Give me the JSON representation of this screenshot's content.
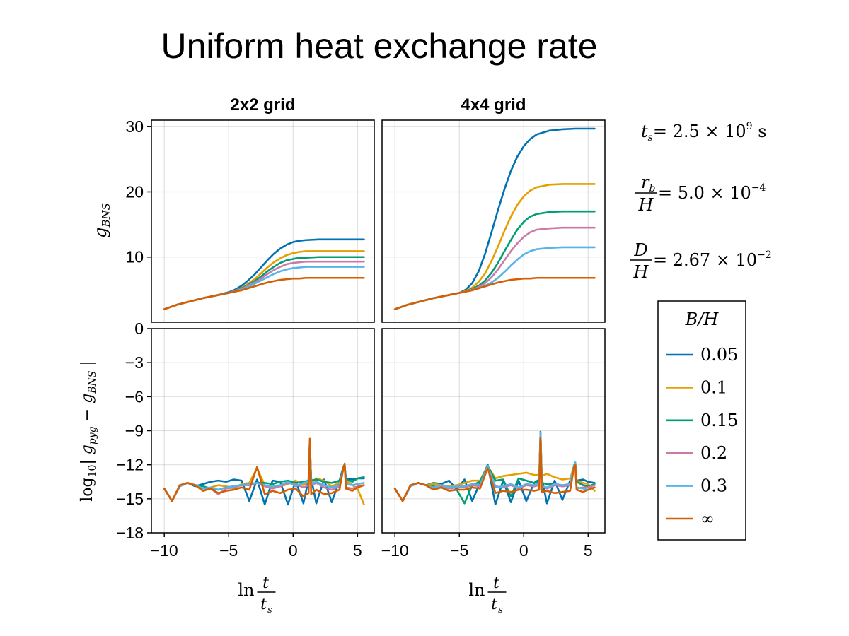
{
  "figure": {
    "title": "Uniform heat exchange rate",
    "annotations": {
      "ts": {
        "lhs": "t",
        "sub": "s",
        "rhs": "= 2.5 × 10",
        "exp": "9",
        "unit": " s"
      },
      "rb": {
        "num": "r",
        "num_sub": "b",
        "den": "H",
        "rhs": "= 5.0 × 10",
        "exp": "−4"
      },
      "d": {
        "num": "D",
        "den": "H",
        "rhs": "= 2.67 × 10",
        "exp": "−2"
      }
    },
    "xlabel": {
      "ln": "ln",
      "num": "t",
      "den": "t",
      "den_sub": "s"
    },
    "ylabel_top": {
      "g": "g",
      "sub": "BNS"
    },
    "ylabel_bottom": {
      "pre": "log",
      "pre_sub": "10",
      "body": "| g",
      "sub1": "pyg",
      "mid": " − g",
      "sub2": "BNS",
      "post": " |"
    }
  },
  "legend": {
    "title": "B/H",
    "entries": [
      {
        "label": "0.05",
        "color": "#0072b2"
      },
      {
        "label": "0.1",
        "color": "#e69f00"
      },
      {
        "label": "0.15",
        "color": "#009e73"
      },
      {
        "label": "0.2",
        "color": "#cc79a7"
      },
      {
        "label": "0.3",
        "color": "#56b4e9"
      },
      {
        "label": "∞",
        "color": "#d55e00"
      }
    ]
  },
  "chart_data": [
    {
      "type": "line",
      "panel": "top-left",
      "column_title": "2x2 grid",
      "xlim": [
        -11,
        6.3
      ],
      "ylim": [
        0,
        31
      ],
      "xticks": [
        -10,
        -5,
        0,
        5
      ],
      "yticks": [
        10,
        20,
        30
      ],
      "grid": true,
      "x": [
        -10.0,
        -9.0,
        -8.0,
        -7.0,
        -6.0,
        -5.0,
        -4.5,
        -4.0,
        -3.5,
        -3.0,
        -2.5,
        -2.0,
        -1.5,
        -1.0,
        -0.5,
        0.0,
        0.5,
        1.0,
        2.0,
        3.0,
        4.0,
        5.0,
        5.5
      ],
      "series": [
        {
          "name": "0.05",
          "values": [
            2.0,
            2.7,
            3.2,
            3.7,
            4.1,
            4.6,
            5.0,
            5.6,
            6.4,
            7.3,
            8.4,
            9.5,
            10.5,
            11.3,
            11.9,
            12.3,
            12.5,
            12.6,
            12.7,
            12.7,
            12.7,
            12.7,
            12.7
          ]
        },
        {
          "name": "0.1",
          "values": [
            2.0,
            2.7,
            3.2,
            3.7,
            4.1,
            4.5,
            4.8,
            5.3,
            5.9,
            6.6,
            7.5,
            8.4,
            9.2,
            9.8,
            10.3,
            10.6,
            10.8,
            10.9,
            10.9,
            10.9,
            10.9,
            10.9,
            10.9
          ]
        },
        {
          "name": "0.15",
          "values": [
            2.0,
            2.7,
            3.2,
            3.7,
            4.1,
            4.5,
            4.8,
            5.2,
            5.7,
            6.3,
            7.0,
            7.8,
            8.5,
            9.1,
            9.5,
            9.7,
            9.9,
            9.9,
            10.0,
            10.0,
            10.0,
            10.0,
            10.0
          ]
        },
        {
          "name": "0.2",
          "values": [
            2.0,
            2.7,
            3.2,
            3.7,
            4.1,
            4.5,
            4.8,
            5.1,
            5.6,
            6.1,
            6.7,
            7.4,
            8.0,
            8.5,
            8.9,
            9.1,
            9.2,
            9.3,
            9.3,
            9.3,
            9.3,
            9.3,
            9.3
          ]
        },
        {
          "name": "0.3",
          "values": [
            2.0,
            2.7,
            3.2,
            3.7,
            4.1,
            4.5,
            4.7,
            5.0,
            5.4,
            5.9,
            6.4,
            6.9,
            7.4,
            7.8,
            8.1,
            8.3,
            8.4,
            8.5,
            8.5,
            8.5,
            8.5,
            8.5,
            8.5
          ]
        },
        {
          "name": "∞",
          "values": [
            2.0,
            2.7,
            3.2,
            3.7,
            4.1,
            4.5,
            4.7,
            4.9,
            5.2,
            5.5,
            5.8,
            6.1,
            6.3,
            6.5,
            6.6,
            6.7,
            6.7,
            6.8,
            6.8,
            6.8,
            6.8,
            6.8,
            6.8
          ]
        }
      ]
    },
    {
      "type": "line",
      "panel": "top-right",
      "column_title": "4x4 grid",
      "xlim": [
        -11,
        6.3
      ],
      "ylim": [
        0,
        31
      ],
      "xticks": [
        -10,
        -5,
        0,
        5
      ],
      "yticks": [
        10,
        20,
        30
      ],
      "grid": true,
      "x": [
        -10.0,
        -9.0,
        -8.0,
        -7.0,
        -6.0,
        -5.0,
        -4.5,
        -4.0,
        -3.5,
        -3.0,
        -2.5,
        -2.0,
        -1.5,
        -1.0,
        -0.5,
        0.0,
        0.5,
        1.0,
        2.0,
        3.0,
        4.0,
        5.0,
        5.5
      ],
      "series": [
        {
          "name": "0.05",
          "values": [
            2.0,
            2.7,
            3.2,
            3.7,
            4.1,
            4.5,
            5.0,
            6.0,
            7.8,
            10.5,
            13.8,
            17.2,
            20.4,
            23.2,
            25.4,
            27.0,
            28.1,
            28.8,
            29.4,
            29.6,
            29.7,
            29.7,
            29.7
          ]
        },
        {
          "name": "0.1",
          "values": [
            2.0,
            2.7,
            3.2,
            3.7,
            4.1,
            4.5,
            4.8,
            5.3,
            6.2,
            7.5,
            9.4,
            11.6,
            14.0,
            16.2,
            18.0,
            19.3,
            20.2,
            20.7,
            21.1,
            21.2,
            21.2,
            21.2,
            21.2
          ]
        },
        {
          "name": "0.15",
          "values": [
            2.0,
            2.7,
            3.2,
            3.7,
            4.1,
            4.5,
            4.7,
            5.1,
            5.6,
            6.4,
            7.6,
            9.1,
            10.9,
            12.6,
            14.2,
            15.4,
            16.2,
            16.6,
            16.9,
            17.0,
            17.0,
            17.0,
            17.0
          ]
        },
        {
          "name": "0.2",
          "values": [
            2.0,
            2.7,
            3.2,
            3.7,
            4.1,
            4.5,
            4.7,
            5.0,
            5.4,
            6.0,
            6.9,
            8.1,
            9.5,
            10.9,
            12.1,
            13.1,
            13.8,
            14.2,
            14.4,
            14.5,
            14.5,
            14.5,
            14.5
          ]
        },
        {
          "name": "0.3",
          "values": [
            2.0,
            2.7,
            3.2,
            3.7,
            4.1,
            4.5,
            4.7,
            4.9,
            5.2,
            5.6,
            6.1,
            6.8,
            7.7,
            8.7,
            9.6,
            10.4,
            10.9,
            11.2,
            11.4,
            11.5,
            11.5,
            11.5,
            11.5
          ]
        },
        {
          "name": "∞",
          "values": [
            2.0,
            2.7,
            3.2,
            3.7,
            4.1,
            4.5,
            4.7,
            4.9,
            5.2,
            5.5,
            5.8,
            6.1,
            6.3,
            6.5,
            6.6,
            6.7,
            6.7,
            6.8,
            6.8,
            6.8,
            6.8,
            6.8,
            6.8
          ]
        }
      ]
    },
    {
      "type": "line",
      "panel": "bottom-left",
      "xlim": [
        -11,
        6.3
      ],
      "ylim": [
        -18,
        0
      ],
      "xticks": [
        -10,
        -5,
        0,
        5
      ],
      "yticks": [
        0,
        -3,
        -6,
        -9,
        -12,
        -15,
        -18
      ],
      "grid": true,
      "x": [
        -10.0,
        -9.4,
        -8.8,
        -8.2,
        -7.6,
        -7.0,
        -6.4,
        -5.8,
        -5.2,
        -4.6,
        -4.0,
        -3.4,
        -2.8,
        -2.2,
        -1.6,
        -1.0,
        -0.4,
        0.2,
        0.8,
        1.2,
        1.3,
        1.4,
        1.8,
        2.4,
        3.0,
        3.6,
        3.9,
        4.0,
        4.1,
        4.6,
        5.0,
        5.5
      ],
      "series": [
        {
          "name": "0.05",
          "values": [
            -14.1,
            -15.2,
            -13.9,
            -13.6,
            -13.9,
            -13.7,
            -13.5,
            -13.4,
            -13.5,
            -13.3,
            -13.4,
            -15.2,
            -13.3,
            -15.5,
            -13.4,
            -13.5,
            -15.5,
            -13.4,
            -15.4,
            -13.3,
            -10.2,
            -13.2,
            -15.4,
            -13.3,
            -15.3,
            -13.4,
            -12.3,
            -12.1,
            -13.2,
            -13.3,
            -13.2,
            -13.2
          ]
        },
        {
          "name": "0.1",
          "values": [
            -14.1,
            -15.2,
            -13.9,
            -13.6,
            -13.8,
            -14.3,
            -14.0,
            -13.8,
            -13.9,
            -14.1,
            -13.7,
            -13.6,
            -12.3,
            -13.8,
            -14.0,
            -13.9,
            -13.7,
            -13.4,
            -13.8,
            -13.5,
            -10.0,
            -13.6,
            -13.2,
            -13.4,
            -13.9,
            -13.6,
            -12.3,
            -12.0,
            -13.4,
            -13.8,
            -14.1,
            -15.5
          ]
        },
        {
          "name": "0.15",
          "values": [
            -14.1,
            -15.2,
            -13.9,
            -13.6,
            -13.8,
            -13.9,
            -14.1,
            -14.2,
            -14.0,
            -13.9,
            -13.8,
            -13.7,
            -13.6,
            -13.6,
            -13.7,
            -13.5,
            -13.4,
            -13.6,
            -13.5,
            -13.4,
            -9.9,
            -13.4,
            -13.3,
            -13.5,
            -13.6,
            -13.4,
            -12.2,
            -12.0,
            -13.3,
            -13.5,
            -13.2,
            -13.1
          ]
        },
        {
          "name": "0.2",
          "values": [
            -14.1,
            -15.2,
            -13.9,
            -13.6,
            -13.8,
            -14.3,
            -14.1,
            -14.6,
            -14.1,
            -14.0,
            -13.8,
            -13.8,
            -13.6,
            -13.9,
            -14.1,
            -13.9,
            -13.6,
            -13.7,
            -14.0,
            -13.8,
            -9.9,
            -13.8,
            -13.6,
            -14.0,
            -14.2,
            -13.9,
            -12.3,
            -12.0,
            -14.0,
            -14.1,
            -13.9,
            -13.8
          ]
        },
        {
          "name": "0.3",
          "values": [
            -14.1,
            -15.2,
            -13.9,
            -13.6,
            -13.8,
            -14.1,
            -14.0,
            -14.2,
            -14.0,
            -13.9,
            -13.8,
            -13.7,
            -13.6,
            -13.8,
            -13.9,
            -13.8,
            -13.5,
            -13.9,
            -13.6,
            -13.5,
            -9.9,
            -13.7,
            -13.5,
            -13.8,
            -14.0,
            -13.8,
            -12.4,
            -12.1,
            -13.7,
            -13.8,
            -13.7,
            -13.6
          ]
        },
        {
          "name": "∞",
          "values": [
            -14.1,
            -15.2,
            -13.8,
            -13.6,
            -13.8,
            -14.3,
            -14.1,
            -14.5,
            -14.3,
            -14.2,
            -14.0,
            -14.2,
            -12.2,
            -14.6,
            -14.3,
            -14.5,
            -14.2,
            -14.1,
            -14.8,
            -14.5,
            -9.7,
            -14.6,
            -14.2,
            -14.6,
            -14.5,
            -14.2,
            -12.3,
            -11.9,
            -14.1,
            -14.3,
            -14.0,
            -13.8
          ]
        }
      ]
    },
    {
      "type": "line",
      "panel": "bottom-right",
      "xlim": [
        -11,
        6.3
      ],
      "ylim": [
        -18,
        0
      ],
      "xticks": [
        -10,
        -5,
        0,
        5
      ],
      "yticks": [
        0,
        -3,
        -6,
        -9,
        -12,
        -15,
        -18
      ],
      "grid": true,
      "x": [
        -10.0,
        -9.4,
        -8.8,
        -8.2,
        -7.6,
        -7.0,
        -6.4,
        -5.8,
        -5.2,
        -4.6,
        -4.0,
        -3.4,
        -2.8,
        -2.2,
        -1.6,
        -1.0,
        -0.4,
        0.2,
        0.8,
        1.2,
        1.3,
        1.4,
        1.8,
        2.4,
        3.0,
        3.6,
        3.9,
        4.0,
        4.1,
        4.6,
        5.0,
        5.5
      ],
      "series": [
        {
          "name": "0.05",
          "values": [
            -14.1,
            -15.2,
            -13.9,
            -13.6,
            -13.8,
            -13.6,
            -13.7,
            -13.4,
            -14.2,
            -13.3,
            -15.2,
            -13.6,
            -12.0,
            -15.5,
            -13.4,
            -15.3,
            -13.4,
            -15.2,
            -13.6,
            -13.3,
            -9.2,
            -13.2,
            -15.4,
            -13.4,
            -15.1,
            -13.4,
            -12.1,
            -11.8,
            -13.4,
            -13.3,
            -13.5,
            -13.6
          ]
        },
        {
          "name": "0.1",
          "values": [
            -14.1,
            -15.2,
            -13.9,
            -13.6,
            -13.8,
            -13.7,
            -13.8,
            -13.9,
            -13.8,
            -13.6,
            -13.4,
            -13.4,
            -12.1,
            -13.2,
            -13.0,
            -12.9,
            -12.8,
            -12.7,
            -12.9,
            -12.9,
            -9.1,
            -13.0,
            -12.8,
            -13.1,
            -13.3,
            -13.2,
            -12.2,
            -11.9,
            -13.4,
            -13.6,
            -13.7,
            -14.3
          ]
        },
        {
          "name": "0.15",
          "values": [
            -14.1,
            -15.2,
            -13.9,
            -13.6,
            -13.8,
            -13.9,
            -14.0,
            -14.3,
            -14.2,
            -15.4,
            -13.8,
            -13.5,
            -12.1,
            -13.4,
            -13.3,
            -14.8,
            -13.2,
            -13.4,
            -13.6,
            -13.5,
            -9.1,
            -13.6,
            -13.7,
            -13.7,
            -13.9,
            -13.8,
            -12.1,
            -11.9,
            -13.5,
            -13.8,
            -13.9,
            -13.7
          ]
        },
        {
          "name": "0.2",
          "values": [
            -14.1,
            -15.2,
            -13.9,
            -13.6,
            -13.8,
            -14.1,
            -13.9,
            -14.1,
            -14.0,
            -14.0,
            -13.8,
            -13.9,
            -12.2,
            -13.9,
            -14.0,
            -13.8,
            -14.1,
            -13.8,
            -13.9,
            -13.8,
            -9.2,
            -13.9,
            -14.1,
            -13.8,
            -13.9,
            -13.8,
            -12.1,
            -11.9,
            -14.1,
            -14.0,
            -14.0,
            -13.8
          ]
        },
        {
          "name": "0.3",
          "values": [
            -14.1,
            -15.2,
            -13.9,
            -13.6,
            -13.8,
            -14.0,
            -13.8,
            -14.0,
            -13.9,
            -13.9,
            -13.7,
            -13.8,
            -12.1,
            -14.0,
            -13.9,
            -13.7,
            -14.0,
            -13.7,
            -13.8,
            -13.6,
            -9.2,
            -13.9,
            -14.0,
            -13.7,
            -13.8,
            -13.7,
            -12.0,
            -11.8,
            -14.0,
            -14.1,
            -14.2,
            -14.0
          ]
        },
        {
          "name": "∞",
          "values": [
            -14.1,
            -15.2,
            -13.8,
            -13.6,
            -13.8,
            -14.2,
            -14.0,
            -14.3,
            -14.2,
            -14.2,
            -14.0,
            -14.1,
            -12.3,
            -14.5,
            -14.3,
            -14.4,
            -14.2,
            -14.2,
            -14.3,
            -14.2,
            -9.6,
            -14.4,
            -14.3,
            -14.5,
            -14.4,
            -14.3,
            -12.2,
            -12.0,
            -14.2,
            -14.4,
            -14.2,
            -14.0
          ]
        }
      ]
    }
  ]
}
